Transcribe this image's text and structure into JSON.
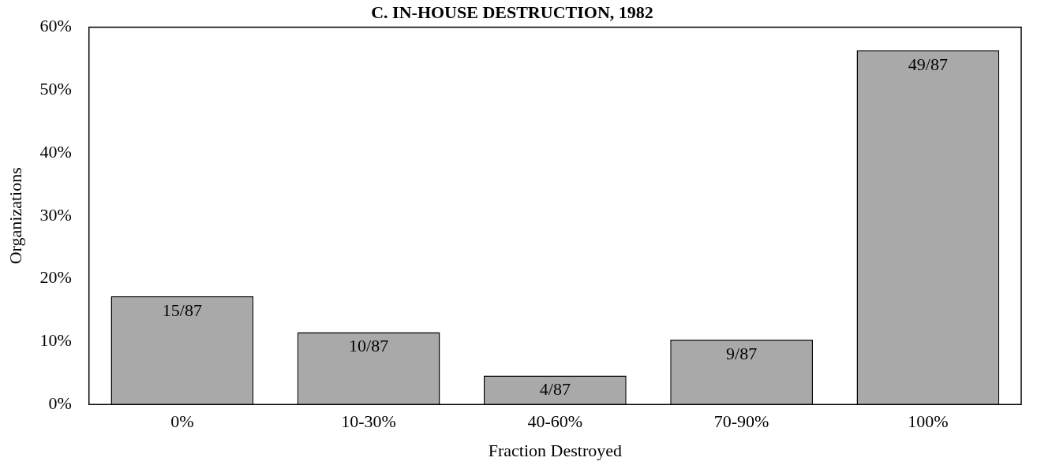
{
  "chart_data": {
    "type": "bar",
    "title": "C. IN-HOUSE DESTRUCTION, 1982",
    "xlabel": "Fraction Destroyed",
    "ylabel": "Organizations",
    "categories": [
      "0%",
      "10-30%",
      "40-60%",
      "70-90%",
      "100%"
    ],
    "values": [
      17.2,
      11.5,
      4.6,
      10.3,
      56.3
    ],
    "value_labels": [
      "15/87",
      "10/87",
      "4/87",
      "9/87",
      "49/87"
    ],
    "color": "#a9a9a9",
    "ylim": [
      0,
      60
    ],
    "yticks": [
      {
        "value": 0,
        "label": "0%"
      },
      {
        "value": 10,
        "label": "10%"
      },
      {
        "value": 20,
        "label": "20%"
      },
      {
        "value": 30,
        "label": "30%"
      },
      {
        "value": 40,
        "label": "40%"
      },
      {
        "value": 50,
        "label": "50%"
      },
      {
        "value": 60,
        "label": "60%"
      }
    ],
    "grid": false,
    "legend": false
  }
}
